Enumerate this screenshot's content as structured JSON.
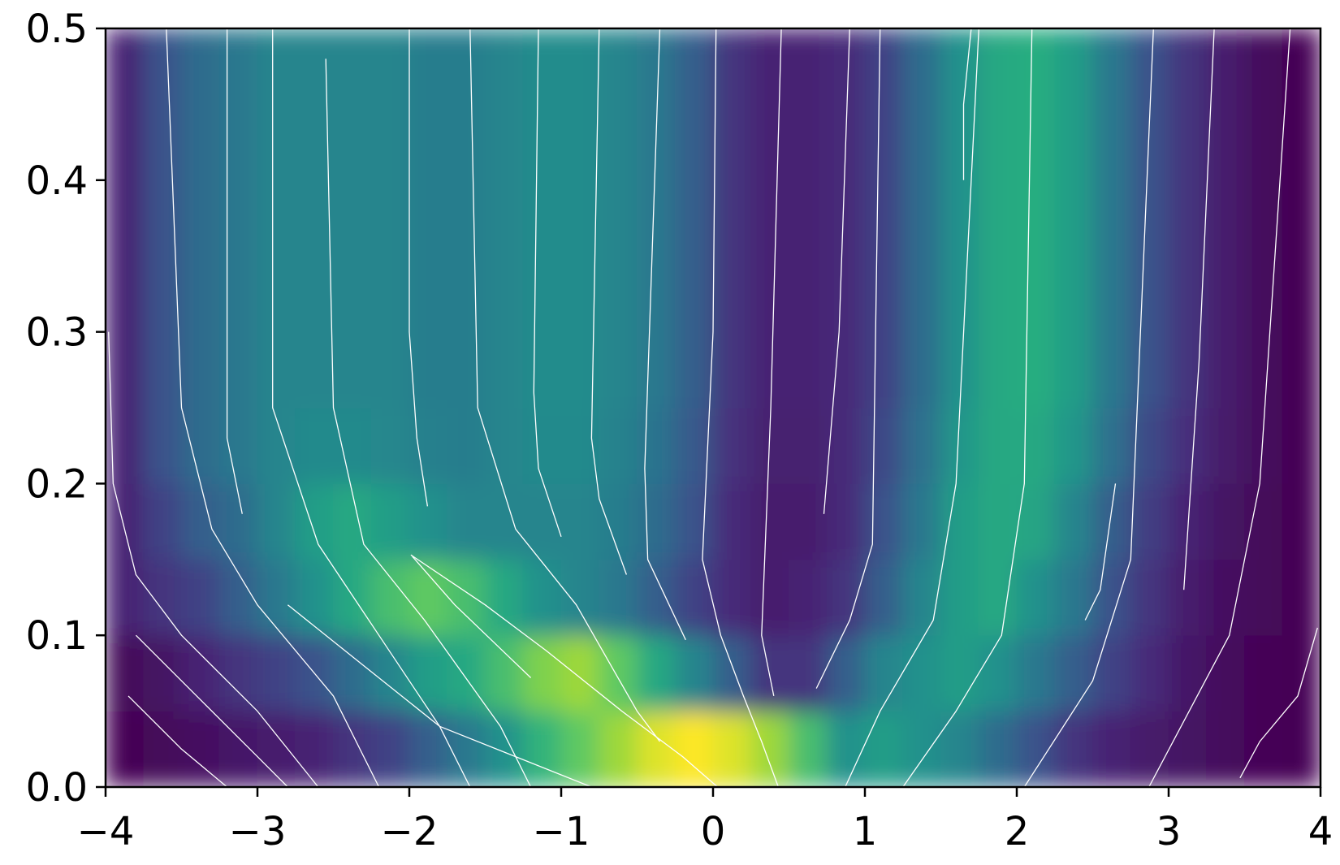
{
  "chart_data": {
    "type": "heatmap_streamplot",
    "xlim": [
      -4,
      4
    ],
    "ylim": [
      0,
      0.5
    ],
    "xticks": [
      {
        "value": -4,
        "label": "−4"
      },
      {
        "value": -3,
        "label": "−3"
      },
      {
        "value": -2,
        "label": "−2"
      },
      {
        "value": -1,
        "label": "−1"
      },
      0,
      1,
      2,
      3,
      4
    ],
    "yticks": [
      {
        "value": 0,
        "label": "0.0"
      },
      0.1,
      0.2,
      0.3,
      0.4,
      0.5
    ],
    "streamline_color": "#ffffff",
    "heatmap": {
      "x": [
        -3.875,
        -3.625,
        -3.375,
        -3.125,
        -2.875,
        -2.625,
        -2.375,
        -2.125,
        -1.875,
        -1.625,
        -1.375,
        -1.125,
        -0.875,
        -0.625,
        -0.375,
        -0.125,
        0.125,
        0.375,
        0.625,
        0.875,
        1.125,
        1.375,
        1.625,
        1.875,
        2.125,
        2.375,
        2.625,
        2.875,
        3.125,
        3.375,
        3.625,
        3.875
      ],
      "y": [
        0.025,
        0.075,
        0.125,
        0.175,
        0.225,
        0.275,
        0.325,
        0.375,
        0.425,
        0.475
      ],
      "z": [
        [
          0,
          0.02,
          0.04,
          0.06,
          0.08,
          0.1,
          0.15,
          0.2,
          0.3,
          0.4,
          0.5,
          0.65,
          0.75,
          0.85,
          0.95,
          1,
          0.95,
          0.85,
          0.7,
          0.5,
          0.55,
          0.5,
          0.45,
          0.35,
          0.25,
          0.15,
          0.1,
          0.07,
          0.05,
          0.03,
          0.01,
          0
        ],
        [
          0.02,
          0.05,
          0.1,
          0.15,
          0.2,
          0.25,
          0.35,
          0.45,
          0.55,
          0.6,
          0.7,
          0.8,
          0.85,
          0.75,
          0.6,
          0.45,
          0.3,
          0.15,
          0.15,
          0.3,
          0.45,
          0.5,
          0.55,
          0.5,
          0.4,
          0.3,
          0.2,
          0.12,
          0.06,
          0.03,
          0.01,
          0
        ],
        [
          0.1,
          0.15,
          0.2,
          0.3,
          0.4,
          0.5,
          0.6,
          0.7,
          0.75,
          0.7,
          0.6,
          0.5,
          0.45,
          0.4,
          0.3,
          0.2,
          0.12,
          0.08,
          0.1,
          0.15,
          0.3,
          0.45,
          0.55,
          0.6,
          0.5,
          0.4,
          0.25,
          0.15,
          0.08,
          0.04,
          0.02,
          0
        ],
        [
          0.1,
          0.2,
          0.3,
          0.35,
          0.45,
          0.55,
          0.6,
          0.55,
          0.5,
          0.45,
          0.45,
          0.45,
          0.45,
          0.42,
          0.35,
          0.25,
          0.12,
          0.08,
          0.08,
          0.12,
          0.25,
          0.4,
          0.55,
          0.6,
          0.58,
          0.45,
          0.3,
          0.18,
          0.1,
          0.05,
          0.02,
          0
        ],
        [
          0.1,
          0.25,
          0.35,
          0.4,
          0.45,
          0.47,
          0.47,
          0.46,
          0.43,
          0.42,
          0.45,
          0.47,
          0.47,
          0.44,
          0.38,
          0.28,
          0.14,
          0.09,
          0.09,
          0.12,
          0.22,
          0.37,
          0.52,
          0.6,
          0.6,
          0.52,
          0.37,
          0.22,
          0.13,
          0.07,
          0.03,
          0
        ],
        [
          0.1,
          0.25,
          0.35,
          0.4,
          0.45,
          0.45,
          0.45,
          0.45,
          0.42,
          0.42,
          0.45,
          0.48,
          0.48,
          0.45,
          0.4,
          0.3,
          0.15,
          0.1,
          0.1,
          0.12,
          0.2,
          0.35,
          0.5,
          0.6,
          0.62,
          0.55,
          0.4,
          0.25,
          0.15,
          0.08,
          0.03,
          0
        ],
        [
          0.1,
          0.25,
          0.35,
          0.4,
          0.45,
          0.45,
          0.45,
          0.45,
          0.42,
          0.42,
          0.45,
          0.48,
          0.48,
          0.45,
          0.4,
          0.3,
          0.15,
          0.1,
          0.1,
          0.12,
          0.2,
          0.35,
          0.5,
          0.6,
          0.62,
          0.55,
          0.4,
          0.25,
          0.15,
          0.08,
          0.03,
          0
        ],
        [
          0.1,
          0.25,
          0.35,
          0.4,
          0.45,
          0.45,
          0.45,
          0.45,
          0.42,
          0.42,
          0.45,
          0.48,
          0.48,
          0.45,
          0.4,
          0.3,
          0.15,
          0.1,
          0.1,
          0.12,
          0.2,
          0.35,
          0.5,
          0.6,
          0.62,
          0.55,
          0.4,
          0.25,
          0.15,
          0.08,
          0.03,
          0
        ],
        [
          0.1,
          0.25,
          0.35,
          0.4,
          0.45,
          0.45,
          0.45,
          0.45,
          0.42,
          0.42,
          0.45,
          0.48,
          0.48,
          0.45,
          0.4,
          0.3,
          0.15,
          0.1,
          0.1,
          0.12,
          0.2,
          0.35,
          0.5,
          0.6,
          0.62,
          0.55,
          0.4,
          0.25,
          0.15,
          0.08,
          0.03,
          0
        ],
        [
          0.1,
          0.25,
          0.35,
          0.4,
          0.45,
          0.45,
          0.45,
          0.45,
          0.42,
          0.42,
          0.45,
          0.48,
          0.48,
          0.45,
          0.4,
          0.3,
          0.15,
          0.1,
          0.1,
          0.12,
          0.2,
          0.35,
          0.5,
          0.6,
          0.62,
          0.55,
          0.4,
          0.25,
          0.15,
          0.08,
          0.03,
          0
        ]
      ]
    },
    "streamlines": [
      {
        "x": [
          -3.98,
          -3.95,
          -3.8,
          -3.5,
          -3.0,
          -2.6
        ],
        "y": [
          0.3,
          0.2,
          0.14,
          0.1,
          0.05,
          0
        ]
      },
      {
        "x": [
          -3.6,
          -3.5,
          -3.3,
          -3.0,
          -2.5,
          -2.2
        ],
        "y": [
          0.5,
          0.25,
          0.17,
          0.12,
          0.06,
          0
        ]
      },
      {
        "x": [
          -2.9,
          -2.9,
          -2.6,
          -2.2,
          -1.8,
          -1.6
        ],
        "y": [
          0.5,
          0.25,
          0.16,
          0.1,
          0.04,
          0
        ]
      },
      {
        "x": [
          -3.2,
          -3.2,
          -3.2,
          -3.1
        ],
        "y": [
          0.5,
          0.3,
          0.23,
          0.18
        ]
      },
      {
        "x": [
          -2.55,
          -2.5,
          -2.3,
          -1.9,
          -1.4,
          -1.2
        ],
        "y": [
          0.48,
          0.25,
          0.16,
          0.11,
          0.04,
          0
        ]
      },
      {
        "x": [
          -2.0,
          -2.0,
          -1.95,
          -1.88
        ],
        "y": [
          0.5,
          0.3,
          0.23,
          0.185
        ]
      },
      {
        "x": [
          -1.6,
          -1.55,
          -1.3,
          -0.9,
          -0.5,
          -0.35
        ],
        "y": [
          0.5,
          0.25,
          0.17,
          0.12,
          0.05,
          0.03
        ]
      },
      {
        "x": [
          -1.15,
          -1.18,
          -1.15,
          -1.0
        ],
        "y": [
          0.5,
          0.26,
          0.21,
          0.165
        ]
      },
      {
        "x": [
          -0.75,
          -0.8,
          -0.75,
          -0.57
        ],
        "y": [
          0.5,
          0.23,
          0.19,
          0.14
        ]
      },
      {
        "x": [
          -0.35,
          -0.45,
          -0.43,
          -0.18
        ],
        "y": [
          0.5,
          0.21,
          0.15,
          0.097
        ]
      },
      {
        "x": [
          0.02,
          0.0,
          -0.07,
          0.05,
          0.2,
          0.32,
          0.43
        ],
        "y": [
          0.5,
          0.3,
          0.15,
          0.1,
          0.06,
          0.03,
          0
        ]
      },
      {
        "x": [
          -1.99,
          -1.5,
          -1.1,
          -0.6,
          -0.2,
          0.03
        ],
        "y": [
          0.153,
          0.12,
          0.09,
          0.05,
          0.02,
          0
        ]
      },
      {
        "x": [
          -2.8,
          -2.3,
          -1.8,
          -1.3,
          -0.8
        ],
        "y": [
          0.12,
          0.08,
          0.04,
          0.02,
          0
        ]
      },
      {
        "x": [
          -3.8,
          -3.4,
          -3.0,
          -2.8
        ],
        "y": [
          0.1,
          0.06,
          0.02,
          0
        ]
      },
      {
        "x": [
          -3.85,
          -3.5,
          -3.2
        ],
        "y": [
          0.06,
          0.025,
          0
        ]
      },
      {
        "x": [
          -1.98,
          -1.7,
          -1.2
        ],
        "y": [
          0.152,
          0.12,
          0.072
        ]
      },
      {
        "x": [
          0.45,
          0.38,
          0.32,
          0.4
        ],
        "y": [
          0.5,
          0.25,
          0.1,
          0.06
        ]
      },
      {
        "x": [
          0.9,
          0.83,
          0.73
        ],
        "y": [
          0.5,
          0.3,
          0.18
        ]
      },
      {
        "x": [
          1.7,
          1.65,
          1.65
        ],
        "y": [
          0.5,
          0.45,
          0.4
        ]
      },
      {
        "x": [
          1.1,
          1.05,
          0.9,
          0.68
        ],
        "y": [
          0.5,
          0.16,
          0.11,
          0.065
        ]
      },
      {
        "x": [
          1.75,
          1.6,
          1.45,
          1.1,
          0.87
        ],
        "y": [
          0.5,
          0.2,
          0.11,
          0.05,
          0
        ]
      },
      {
        "x": [
          2.1,
          2.05,
          1.9,
          1.6,
          1.25
        ],
        "y": [
          0.5,
          0.2,
          0.1,
          0.05,
          0
        ]
      },
      {
        "x": [
          2.65,
          2.55,
          2.45
        ],
        "y": [
          0.2,
          0.13,
          0.11
        ]
      },
      {
        "x": [
          2.9,
          2.75,
          2.5,
          2.05
        ],
        "y": [
          0.5,
          0.15,
          0.07,
          0
        ]
      },
      {
        "x": [
          3.3,
          3.2,
          3.1
        ],
        "y": [
          0.5,
          0.28,
          0.13
        ]
      },
      {
        "x": [
          3.8,
          3.6,
          3.4,
          2.87
        ],
        "y": [
          0.5,
          0.2,
          0.1,
          0
        ]
      },
      {
        "x": [
          3.98,
          3.85,
          3.6,
          3.47
        ],
        "y": [
          0.105,
          0.06,
          0.03,
          0.006
        ]
      }
    ]
  }
}
